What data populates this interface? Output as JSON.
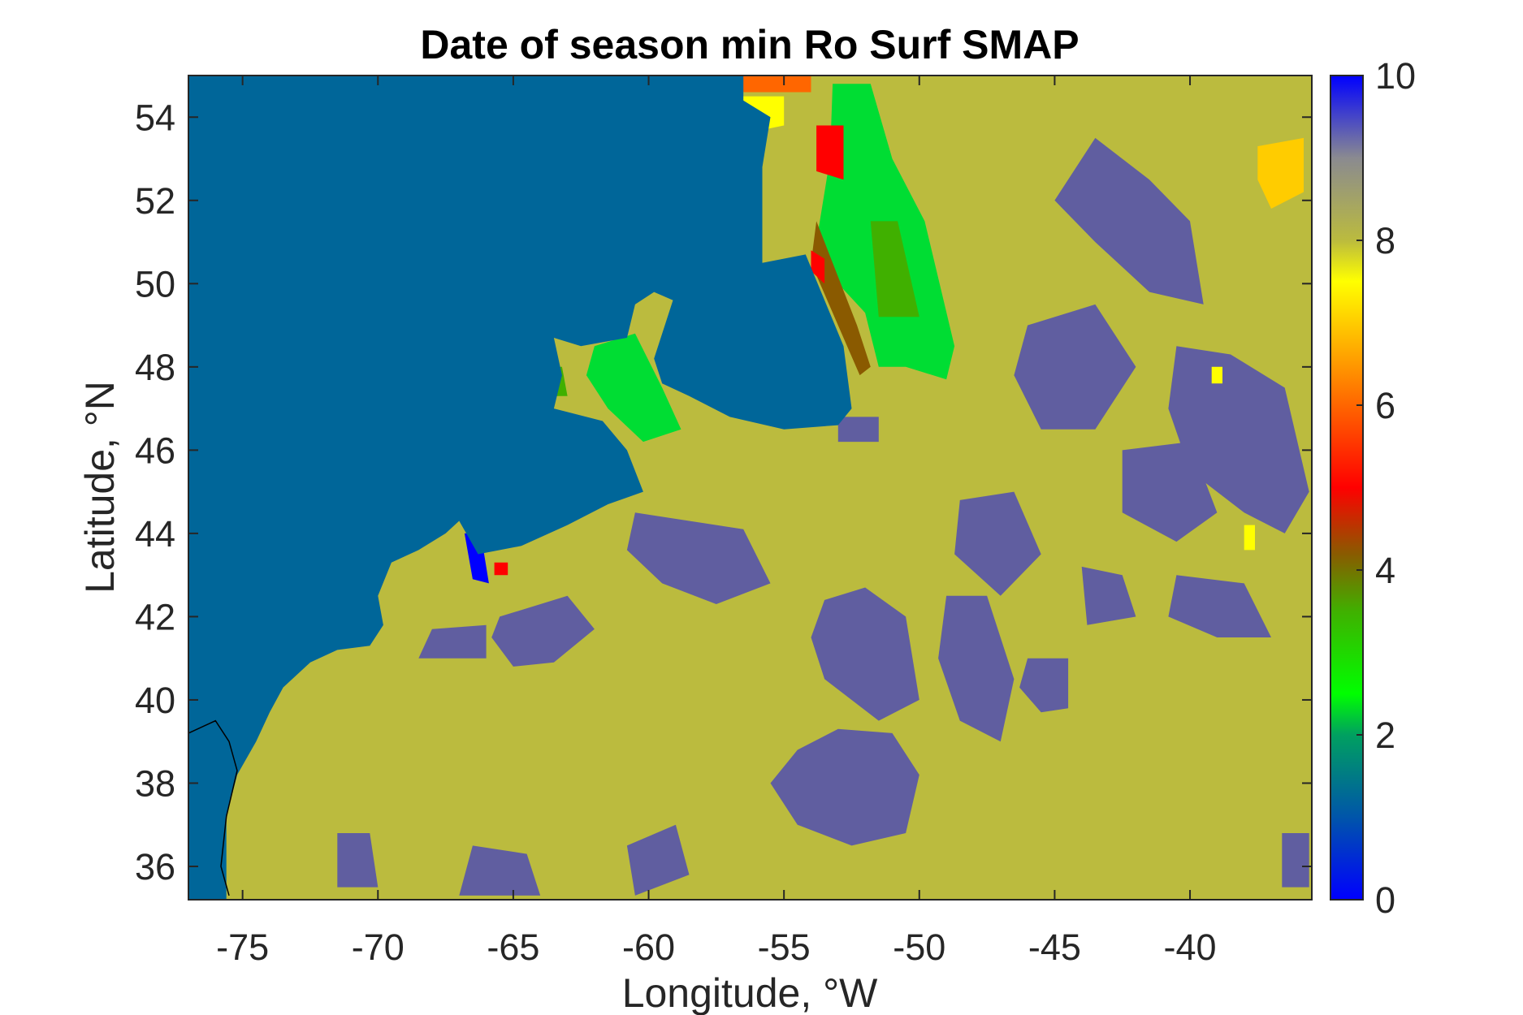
{
  "chart_data": {
    "type": "heatmap",
    "title": "Date of season min Ro Surf SMAP",
    "xlabel": "Longitude, °W",
    "ylabel": "Latitude, °N",
    "xlim": [
      -77,
      -35.5
    ],
    "ylim": [
      35.2,
      55
    ],
    "xticks": [
      -75,
      -70,
      -65,
      -60,
      -55,
      -50,
      -45,
      -40
    ],
    "xtick_labels": [
      "-75",
      "-70",
      "-65",
      "-60",
      "-55",
      "-50",
      "-45",
      "-40"
    ],
    "yticks": [
      36,
      38,
      40,
      42,
      44,
      46,
      48,
      50,
      52,
      54
    ],
    "ytick_labels": [
      "36",
      "38",
      "40",
      "42",
      "44",
      "46",
      "48",
      "50",
      "52",
      "54"
    ],
    "colorbar": {
      "range": [
        0,
        10
      ],
      "ticks": [
        0,
        2,
        4,
        6,
        8,
        10
      ],
      "tick_labels": [
        "0",
        "2",
        "4",
        "6",
        "8",
        "10"
      ]
    },
    "background_value": 8.1,
    "land_value": 1.0,
    "patches": [
      {
        "value": 9.2,
        "points": [
          [
            -65.5,
            42.0
          ],
          [
            -63.0,
            42.5
          ],
          [
            -62.0,
            41.7
          ],
          [
            -63.5,
            40.9
          ],
          [
            -65.0,
            40.8
          ],
          [
            -65.8,
            41.5
          ]
        ]
      },
      {
        "value": 9.2,
        "points": [
          [
            -68.0,
            41.7
          ],
          [
            -66.0,
            41.8
          ],
          [
            -66.0,
            41.0
          ],
          [
            -68.5,
            41.0
          ]
        ]
      },
      {
        "value": 9.2,
        "points": [
          [
            -60.5,
            44.5
          ],
          [
            -58.5,
            44.3
          ],
          [
            -56.5,
            44.1
          ],
          [
            -55.5,
            42.8
          ],
          [
            -57.5,
            42.3
          ],
          [
            -59.5,
            42.8
          ],
          [
            -60.8,
            43.6
          ]
        ]
      },
      {
        "value": 9.2,
        "points": [
          [
            -53.5,
            42.4
          ],
          [
            -52.0,
            42.7
          ],
          [
            -50.5,
            42.0
          ],
          [
            -50.0,
            40.0
          ],
          [
            -51.5,
            39.5
          ],
          [
            -53.5,
            40.5
          ],
          [
            -54.0,
            41.5
          ]
        ]
      },
      {
        "value": 9.2,
        "points": [
          [
            -49.0,
            42.5
          ],
          [
            -47.5,
            42.5
          ],
          [
            -46.5,
            40.5
          ],
          [
            -47.0,
            39.0
          ],
          [
            -48.5,
            39.5
          ],
          [
            -49.3,
            41.0
          ]
        ]
      },
      {
        "value": 9.2,
        "points": [
          [
            -54.5,
            38.8
          ],
          [
            -53.0,
            39.3
          ],
          [
            -51.0,
            39.2
          ],
          [
            -50.0,
            38.2
          ],
          [
            -50.5,
            36.8
          ],
          [
            -52.5,
            36.5
          ],
          [
            -54.5,
            37.0
          ],
          [
            -55.5,
            38.0
          ]
        ]
      },
      {
        "value": 9.2,
        "points": [
          [
            -46.0,
            41.0
          ],
          [
            -44.5,
            41.0
          ],
          [
            -44.5,
            39.8
          ],
          [
            -45.5,
            39.7
          ],
          [
            -46.3,
            40.3
          ]
        ]
      },
      {
        "value": 9.2,
        "points": [
          [
            -66.5,
            36.5
          ],
          [
            -64.5,
            36.3
          ],
          [
            -64.0,
            35.3
          ],
          [
            -67.0,
            35.3
          ]
        ]
      },
      {
        "value": 9.2,
        "points": [
          [
            -71.5,
            36.8
          ],
          [
            -70.3,
            36.8
          ],
          [
            -70.0,
            35.5
          ],
          [
            -71.5,
            35.5
          ]
        ]
      },
      {
        "value": 9.2,
        "points": [
          [
            -43.5,
            53.5
          ],
          [
            -41.5,
            52.5
          ],
          [
            -40.0,
            51.5
          ],
          [
            -39.5,
            49.5
          ],
          [
            -41.5,
            49.8
          ],
          [
            -43.5,
            51.0
          ],
          [
            -45.0,
            52.0
          ]
        ]
      },
      {
        "value": 9.2,
        "points": [
          [
            -40.5,
            48.5
          ],
          [
            -38.5,
            48.3
          ],
          [
            -36.5,
            47.5
          ],
          [
            -35.6,
            45.0
          ],
          [
            -36.5,
            44.0
          ],
          [
            -38.0,
            44.5
          ],
          [
            -40.0,
            45.5
          ],
          [
            -40.8,
            47.0
          ]
        ]
      },
      {
        "value": 9.2,
        "points": [
          [
            -46.0,
            49.0
          ],
          [
            -43.5,
            49.5
          ],
          [
            -42.0,
            48.0
          ],
          [
            -43.5,
            46.5
          ],
          [
            -45.5,
            46.5
          ],
          [
            -46.5,
            47.8
          ]
        ]
      },
      {
        "value": 9.2,
        "points": [
          [
            -48.5,
            44.8
          ],
          [
            -46.5,
            45.0
          ],
          [
            -45.5,
            43.5
          ],
          [
            -47.0,
            42.5
          ],
          [
            -48.7,
            43.5
          ]
        ]
      },
      {
        "value": 9.2,
        "points": [
          [
            -42.5,
            46.0
          ],
          [
            -40.0,
            46.2
          ],
          [
            -39.0,
            44.5
          ],
          [
            -40.5,
            43.8
          ],
          [
            -42.5,
            44.5
          ]
        ]
      },
      {
        "value": 9.2,
        "points": [
          [
            -40.5,
            43.0
          ],
          [
            -38.0,
            42.8
          ],
          [
            -37.0,
            41.5
          ],
          [
            -39.0,
            41.5
          ],
          [
            -40.8,
            42.0
          ]
        ]
      },
      {
        "value": 9.2,
        "points": [
          [
            -44.0,
            43.2
          ],
          [
            -42.5,
            43.0
          ],
          [
            -42.0,
            42.0
          ],
          [
            -43.8,
            41.8
          ]
        ]
      },
      {
        "value": 9.2,
        "points": [
          [
            -36.6,
            36.8
          ],
          [
            -35.6,
            36.8
          ],
          [
            -35.6,
            35.5
          ],
          [
            -36.6,
            35.5
          ]
        ]
      },
      {
        "value": 9.2,
        "points": [
          [
            -53.0,
            46.8
          ],
          [
            -51.5,
            46.8
          ],
          [
            -51.5,
            46.2
          ],
          [
            -53.0,
            46.2
          ]
        ]
      },
      {
        "value": 9.2,
        "points": [
          [
            -60.8,
            36.5
          ],
          [
            -59.0,
            37.0
          ],
          [
            -58.5,
            35.8
          ],
          [
            -60.5,
            35.3
          ]
        ]
      },
      {
        "value": 2.6,
        "points": [
          [
            -53.2,
            54.8
          ],
          [
            -51.8,
            54.8
          ],
          [
            -51.0,
            53.0
          ],
          [
            -49.8,
            51.5
          ],
          [
            -48.7,
            48.5
          ],
          [
            -49.0,
            47.7
          ],
          [
            -50.5,
            48.0
          ],
          [
            -51.5,
            48.0
          ],
          [
            -52.0,
            49.3
          ],
          [
            -53.0,
            50.0
          ],
          [
            -53.8,
            51.0
          ],
          [
            -53.3,
            53.0
          ]
        ]
      },
      {
        "value": 3.2,
        "points": [
          [
            -51.8,
            51.5
          ],
          [
            -50.8,
            51.5
          ],
          [
            -50.0,
            49.2
          ],
          [
            -51.5,
            49.2
          ]
        ]
      },
      {
        "value": 4.3,
        "points": [
          [
            -53.8,
            51.5
          ],
          [
            -53.2,
            50.5
          ],
          [
            -52.3,
            49.0
          ],
          [
            -51.8,
            48.0
          ],
          [
            -52.2,
            47.8
          ],
          [
            -53.0,
            49.0
          ],
          [
            -54.0,
            50.5
          ]
        ]
      },
      {
        "value": 5.0,
        "points": [
          [
            -53.8,
            53.8
          ],
          [
            -52.8,
            53.8
          ],
          [
            -52.8,
            52.5
          ],
          [
            -53.8,
            52.7
          ]
        ]
      },
      {
        "value": 5.3,
        "points": [
          [
            -54.0,
            50.8
          ],
          [
            -53.5,
            50.6
          ],
          [
            -53.5,
            50.0
          ],
          [
            -54.0,
            50.3
          ]
        ]
      },
      {
        "value": 7.2,
        "points": [
          [
            -56.8,
            54.5
          ],
          [
            -55.0,
            54.5
          ],
          [
            -55.0,
            53.8
          ],
          [
            -56.5,
            53.6
          ]
        ]
      },
      {
        "value": 7.0,
        "points": [
          [
            -37.5,
            53.3
          ],
          [
            -35.8,
            53.5
          ],
          [
            -35.8,
            52.2
          ],
          [
            -37.0,
            51.8
          ],
          [
            -37.5,
            52.5
          ]
        ]
      },
      {
        "value": 6.0,
        "points": [
          [
            -57.0,
            55.0
          ],
          [
            -54.0,
            55.0
          ],
          [
            -54.0,
            54.6
          ],
          [
            -57.0,
            54.6
          ]
        ]
      },
      {
        "value": 2.8,
        "points": [
          [
            -62.0,
            48.5
          ],
          [
            -60.5,
            48.8
          ],
          [
            -59.5,
            47.5
          ],
          [
            -58.8,
            46.5
          ],
          [
            -60.2,
            46.2
          ],
          [
            -61.5,
            47.0
          ],
          [
            -62.3,
            47.8
          ]
        ]
      },
      {
        "value": 3.0,
        "points": [
          [
            -64.2,
            48.0
          ],
          [
            -63.2,
            48.0
          ],
          [
            -63.0,
            47.3
          ],
          [
            -64.0,
            47.3
          ]
        ]
      },
      {
        "value": 7.2,
        "points": [
          [
            -39.2,
            48.0
          ],
          [
            -38.8,
            48.0
          ],
          [
            -38.8,
            47.6
          ],
          [
            -39.2,
            47.6
          ]
        ]
      },
      {
        "value": 7.2,
        "points": [
          [
            -38.0,
            44.2
          ],
          [
            -37.6,
            44.2
          ],
          [
            -37.6,
            43.6
          ],
          [
            -38.0,
            43.6
          ]
        ]
      },
      {
        "value": 0.4,
        "points": [
          [
            -66.8,
            44.0
          ],
          [
            -66.2,
            44.0
          ],
          [
            -65.9,
            42.8
          ],
          [
            -66.5,
            42.9
          ]
        ]
      },
      {
        "value": 5.2,
        "points": [
          [
            -65.7,
            43.3
          ],
          [
            -65.2,
            43.3
          ],
          [
            -65.2,
            43.0
          ],
          [
            -65.7,
            43.0
          ]
        ]
      }
    ],
    "land": [
      [
        -77,
        55
      ],
      [
        -56.5,
        55
      ],
      [
        -56.5,
        54.4
      ],
      [
        -55.5,
        54.0
      ],
      [
        -55.8,
        52.8
      ],
      [
        -55.8,
        50.5
      ],
      [
        -54.2,
        50.7
      ],
      [
        -52.8,
        48.5
      ],
      [
        -52.5,
        47.0
      ],
      [
        -53.0,
        46.6
      ],
      [
        -55.0,
        46.5
      ],
      [
        -57.0,
        46.8
      ],
      [
        -58.5,
        47.3
      ],
      [
        -59.5,
        47.6
      ],
      [
        -59.8,
        48.2
      ],
      [
        -59.1,
        49.6
      ],
      [
        -59.8,
        49.8
      ],
      [
        -60.5,
        49.5
      ],
      [
        -60.8,
        48.7
      ],
      [
        -62.5,
        48.5
      ],
      [
        -63.5,
        48.7
      ],
      [
        -63.2,
        47.8
      ],
      [
        -63.5,
        47.0
      ],
      [
        -61.7,
        46.7
      ],
      [
        -60.8,
        46.0
      ],
      [
        -60.2,
        45.0
      ],
      [
        -61.5,
        44.7
      ],
      [
        -63.0,
        44.2
      ],
      [
        -64.7,
        43.7
      ],
      [
        -66.3,
        43.5
      ],
      [
        -67.0,
        44.3
      ],
      [
        -67.5,
        44.0
      ],
      [
        -68.5,
        43.6
      ],
      [
        -69.5,
        43.3
      ],
      [
        -70.0,
        42.5
      ],
      [
        -69.8,
        41.8
      ],
      [
        -70.3,
        41.3
      ],
      [
        -71.5,
        41.2
      ],
      [
        -72.5,
        40.9
      ],
      [
        -73.5,
        40.3
      ],
      [
        -74.0,
        39.7
      ],
      [
        -74.5,
        39.0
      ],
      [
        -75.2,
        38.2
      ],
      [
        -75.6,
        37.2
      ],
      [
        -75.6,
        35.2
      ],
      [
        -77,
        35.2
      ]
    ],
    "coastline": [
      [
        -77,
        39.2
      ],
      [
        -76.0,
        39.5
      ],
      [
        -75.5,
        39.0
      ],
      [
        -75.2,
        38.3
      ],
      [
        -75.6,
        37.2
      ],
      [
        -75.8,
        36.0
      ],
      [
        -75.5,
        35.3
      ]
    ]
  },
  "colors": {
    "background": "#bbbb3e",
    "land": "#006699",
    "purple": "#605ea0",
    "axis": "#262626"
  }
}
